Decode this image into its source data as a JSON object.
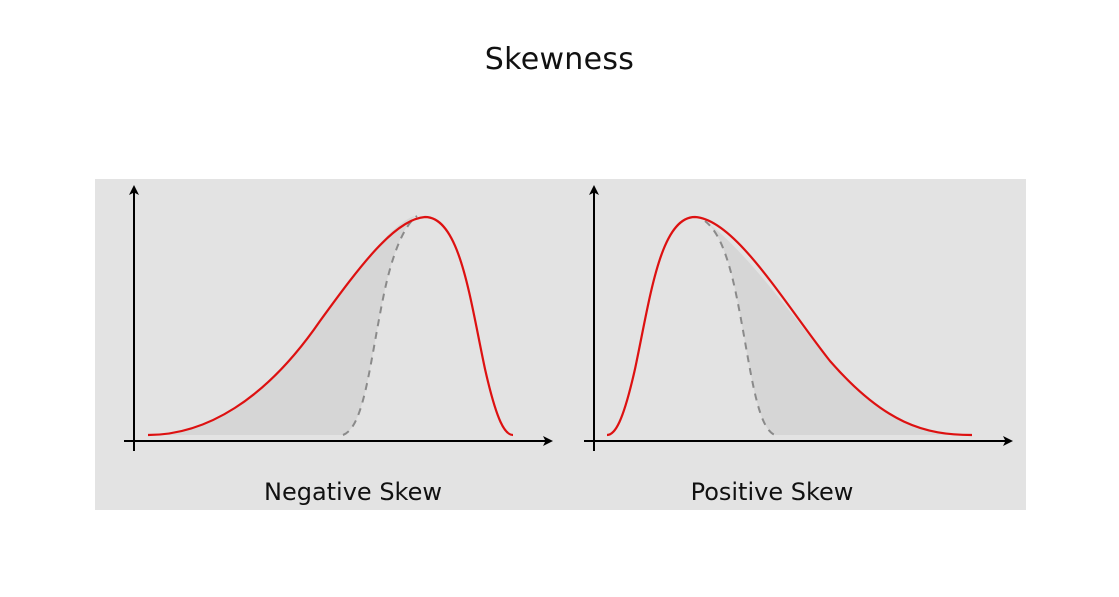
{
  "title": "Skewness",
  "colors": {
    "panel_background": "#e3e3e3",
    "curve": "#dd1111",
    "reference_curve": "#8a8a8a",
    "fill": "#d6d6d6",
    "axis": "#000000"
  },
  "diagrams": [
    {
      "id": "negative",
      "label": "Negative Skew",
      "curve_style": "solid red",
      "reference_style": "dashed grey (symmetric normal)"
    },
    {
      "id": "positive",
      "label": "Positive Skew",
      "curve_style": "solid red",
      "reference_style": "dashed grey (symmetric normal)"
    }
  ]
}
